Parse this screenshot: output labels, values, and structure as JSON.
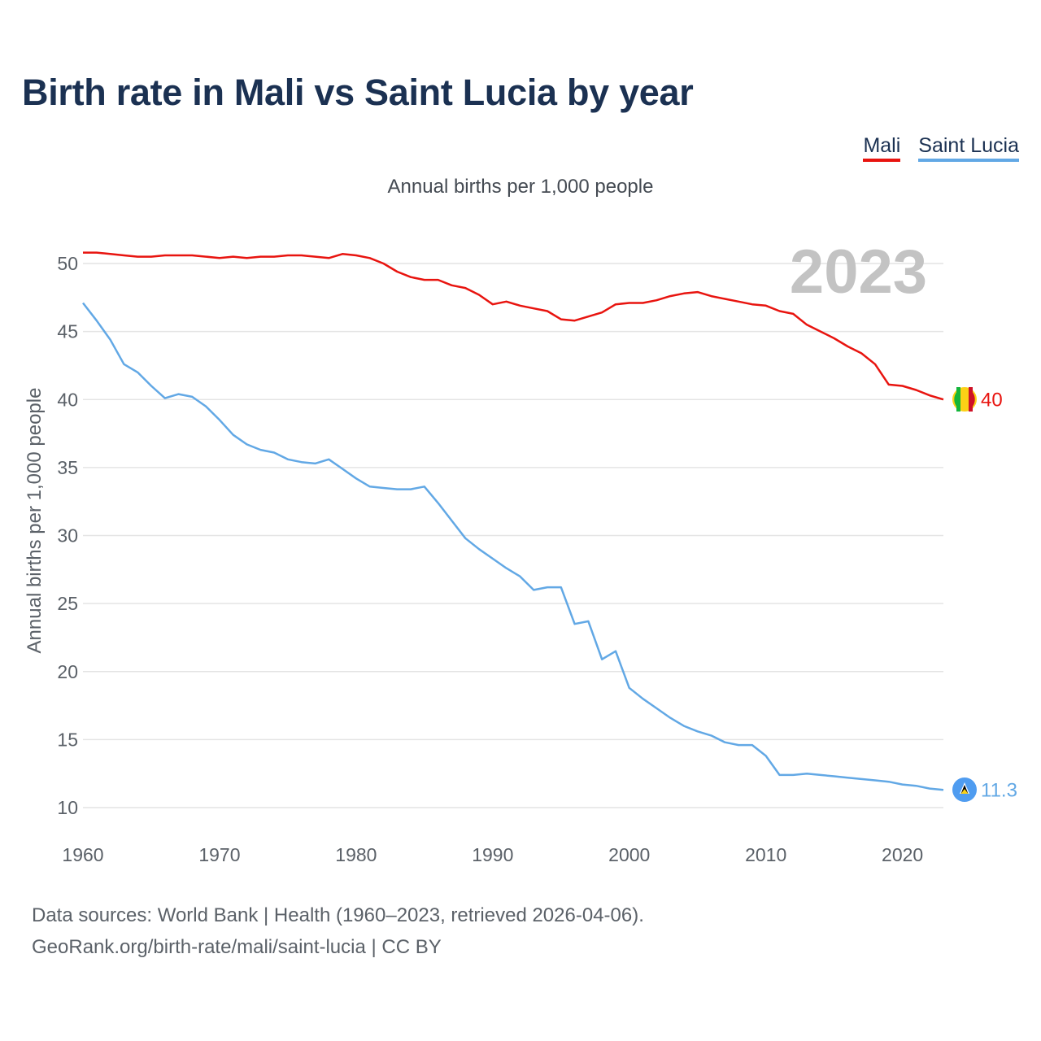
{
  "title": "Birth rate in Mali vs Saint Lucia by year",
  "legend": [
    {
      "label": "Mali",
      "color": "#e8140f"
    },
    {
      "label": "Saint Lucia",
      "color": "#62a8e5"
    }
  ],
  "source_line1": "Data sources: World Bank | Health (1960–2023, retrieved 2026-04-06).",
  "source_line2": "GeoRank.org/birth-rate/mali/saint-lucia | CC BY",
  "chart_data": {
    "type": "line",
    "title": "Birth rate in Mali vs Saint Lucia by year",
    "subtitle": "Annual births per 1,000 people",
    "xlabel": "",
    "ylabel": "Annual births per 1,000 people",
    "year_label": "2023",
    "xlim": [
      1960,
      2023
    ],
    "ylim": [
      10,
      52
    ],
    "x_ticks": [
      1960,
      1970,
      1980,
      1990,
      2000,
      2010,
      2020
    ],
    "y_ticks": [
      10,
      15,
      20,
      25,
      30,
      35,
      40,
      45,
      50
    ],
    "grid": true,
    "legend_position": "top-right",
    "x": [
      1960,
      1961,
      1962,
      1963,
      1964,
      1965,
      1966,
      1967,
      1968,
      1969,
      1970,
      1971,
      1972,
      1973,
      1974,
      1975,
      1976,
      1977,
      1978,
      1979,
      1980,
      1981,
      1982,
      1983,
      1984,
      1985,
      1986,
      1987,
      1988,
      1989,
      1990,
      1991,
      1992,
      1993,
      1994,
      1995,
      1996,
      1997,
      1998,
      1999,
      2000,
      2001,
      2002,
      2003,
      2004,
      2005,
      2006,
      2007,
      2008,
      2009,
      2010,
      2011,
      2012,
      2013,
      2014,
      2015,
      2016,
      2017,
      2018,
      2019,
      2020,
      2021,
      2022,
      2023
    ],
    "series": [
      {
        "name": "Mali",
        "color": "#e8140f",
        "end_label": "40",
        "values": [
          50.8,
          50.8,
          50.7,
          50.6,
          50.5,
          50.5,
          50.6,
          50.6,
          50.6,
          50.5,
          50.4,
          50.5,
          50.4,
          50.5,
          50.5,
          50.6,
          50.6,
          50.5,
          50.4,
          50.7,
          50.6,
          50.4,
          50.0,
          49.4,
          49.0,
          48.8,
          48.8,
          48.4,
          48.2,
          47.7,
          47.0,
          47.2,
          46.9,
          46.7,
          46.5,
          45.9,
          45.8,
          46.1,
          46.4,
          47.0,
          47.1,
          47.1,
          47.3,
          47.6,
          47.8,
          47.9,
          47.6,
          47.4,
          47.2,
          47.0,
          46.9,
          46.5,
          46.3,
          45.5,
          45.0,
          44.5,
          43.9,
          43.4,
          42.6,
          41.1,
          41.0,
          40.7,
          40.3,
          40.0
        ]
      },
      {
        "name": "Saint Lucia",
        "color": "#62a8e5",
        "end_label": "11.3",
        "values": [
          47.1,
          45.8,
          44.4,
          42.6,
          42.0,
          41.0,
          40.1,
          40.4,
          40.2,
          39.5,
          38.5,
          37.4,
          36.7,
          36.3,
          36.1,
          35.6,
          35.4,
          35.3,
          35.6,
          34.9,
          34.2,
          33.6,
          33.5,
          33.4,
          33.4,
          33.6,
          32.4,
          31.1,
          29.8,
          29.0,
          28.3,
          27.6,
          27.0,
          26.0,
          26.2,
          26.2,
          23.5,
          23.7,
          20.9,
          21.5,
          18.8,
          18.0,
          17.3,
          16.6,
          16.0,
          15.6,
          15.3,
          14.8,
          14.6,
          14.6,
          13.8,
          12.4,
          12.4,
          12.5,
          12.4,
          12.3,
          12.2,
          12.1,
          12.0,
          11.9,
          11.7,
          11.6,
          11.4,
          11.3
        ]
      }
    ]
  }
}
